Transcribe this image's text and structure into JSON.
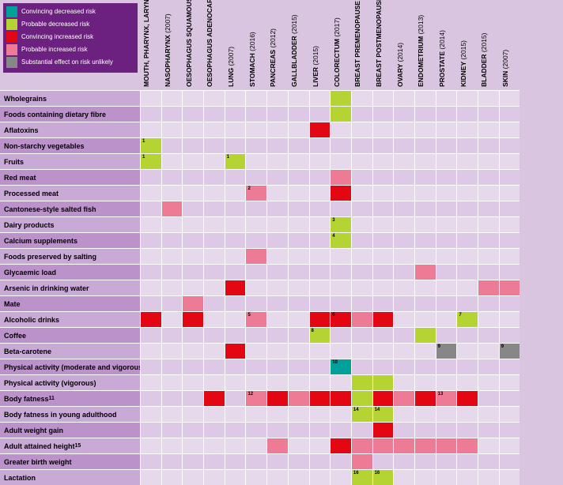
{
  "colors": {
    "background": "#d9c5e0",
    "row_alt_a": "#e7d9ec",
    "row_alt_b": "#ddc9e5",
    "rowlabel_alt_a": "#c9a9d5",
    "rowlabel_alt_b": "#bb93ca",
    "border": "#ffffff",
    "legend_bg": "#6c2080",
    "convincing_decreased": "#00a19a",
    "probable_decreased": "#b6d334",
    "convincing_increased": "#e30613",
    "probable_increased": "#ee7b95",
    "unlikely": "#878787"
  },
  "legend": [
    {
      "key": "convincing_decreased",
      "label": "Convincing decreased risk"
    },
    {
      "key": "probable_decreased",
      "label": "Probable decreased risk"
    },
    {
      "key": "convincing_increased",
      "label": "Convincing increased risk"
    },
    {
      "key": "probable_increased",
      "label": "Probable increased risk"
    },
    {
      "key": "unlikely",
      "label": "Substantial effect on risk unlikely"
    }
  ],
  "columns": [
    {
      "label": "MOUTH, PHARYNX, LARYNX",
      "year": "(2007)"
    },
    {
      "label": "NASOPHARYNX",
      "year": "(2007)"
    },
    {
      "label": "OESOPHAGUS SQUAMOUS CELL CARCINOMA",
      "year": "(2016)"
    },
    {
      "label": "OESOPHAGUS ADENOCARCINOMA",
      "year": "(2016)"
    },
    {
      "label": "LUNG",
      "year": "(2007)"
    },
    {
      "label": "STOMACH",
      "year": "(2016)"
    },
    {
      "label": "PANCREAS",
      "year": "(2012)"
    },
    {
      "label": "GALLBLADDER",
      "year": "(2015)"
    },
    {
      "label": "LIVER",
      "year": "(2015)"
    },
    {
      "label": "COLORECTUM",
      "year": "(2017)"
    },
    {
      "label": "BREAST PREMENOPAUSE",
      "year": "(2017)"
    },
    {
      "label": "BREAST POSTMENOPAUSE",
      "year": "(2017)"
    },
    {
      "label": "OVARY",
      "year": "(2014)"
    },
    {
      "label": "ENDOMETRIUM",
      "year": "(2013)"
    },
    {
      "label": "PROSTATE",
      "year": "(2014)"
    },
    {
      "label": "KIDNEY",
      "year": "(2015)"
    },
    {
      "label": "BLADDER",
      "year": "(2015)"
    },
    {
      "label": "SKIN",
      "year": "(2007)"
    }
  ],
  "rows": [
    {
      "label": "Wholegrains",
      "cells": {
        "9": {
          "c": "probable_decreased"
        }
      }
    },
    {
      "label": "Foods containing dietary fibre",
      "cells": {
        "9": {
          "c": "probable_decreased"
        }
      }
    },
    {
      "label": "Aflatoxins",
      "cells": {
        "8": {
          "c": "convincing_increased"
        }
      }
    },
    {
      "label": "Non-starchy vegetables",
      "cells": {
        "0": {
          "c": "probable_decreased",
          "sup": "1"
        }
      }
    },
    {
      "label": "Fruits",
      "cells": {
        "0": {
          "c": "probable_decreased",
          "sup": "1"
        },
        "4": {
          "c": "probable_decreased",
          "sup": "1"
        }
      }
    },
    {
      "label": "Red meat",
      "cells": {
        "9": {
          "c": "probable_increased"
        }
      }
    },
    {
      "label": "Processed meat",
      "cells": {
        "5": {
          "c": "probable_increased",
          "sup": "2"
        },
        "9": {
          "c": "convincing_increased"
        }
      }
    },
    {
      "label": "Cantonese-style salted fish",
      "cells": {
        "1": {
          "c": "probable_increased"
        }
      }
    },
    {
      "label": "Dairy products",
      "cells": {
        "9": {
          "c": "probable_decreased",
          "sup": "3"
        }
      }
    },
    {
      "label": "Calcium supplements",
      "cells": {
        "9": {
          "c": "probable_decreased",
          "sup": "4"
        }
      }
    },
    {
      "label": "Foods preserved by salting",
      "cells": {
        "5": {
          "c": "probable_increased"
        }
      }
    },
    {
      "label": "Glycaemic load",
      "cells": {
        "13": {
          "c": "probable_increased"
        }
      }
    },
    {
      "label": "Arsenic in drinking water",
      "cells": {
        "4": {
          "c": "convincing_increased"
        },
        "16": {
          "c": "probable_increased"
        },
        "17": {
          "c": "probable_increased"
        }
      }
    },
    {
      "label": "Mate",
      "cells": {
        "2": {
          "c": "probable_increased"
        }
      }
    },
    {
      "label": "Alcoholic drinks",
      "cells": {
        "0": {
          "c": "convincing_increased"
        },
        "2": {
          "c": "convincing_increased"
        },
        "5": {
          "c": "probable_increased",
          "sup": "5"
        },
        "8": {
          "c": "convincing_increased"
        },
        "9": {
          "c": "convincing_increased",
          "sup": "6"
        },
        "10": {
          "c": "probable_increased"
        },
        "11": {
          "c": "convincing_increased"
        },
        "15": {
          "c": "probable_decreased",
          "sup": "7"
        }
      }
    },
    {
      "label": "Coffee",
      "cells": {
        "8": {
          "c": "probable_decreased",
          "sup": "8"
        },
        "13": {
          "c": "probable_decreased"
        }
      }
    },
    {
      "label": "Beta-carotene",
      "cells": {
        "4": {
          "c": "convincing_increased"
        },
        "14": {
          "c": "unlikely",
          "sup": "9"
        },
        "17": {
          "c": "unlikely",
          "sup": "9"
        }
      }
    },
    {
      "label": "Physical activity (moderate and vigorous)",
      "cells": {
        "9": {
          "c": "convincing_decreased",
          "sup": "10"
        }
      }
    },
    {
      "label": "Physical activity (vigorous)",
      "cells": {
        "10": {
          "c": "probable_decreased"
        },
        "11": {
          "c": "probable_decreased"
        }
      }
    },
    {
      "label": "Body fatness",
      "sup": "11",
      "cells": {
        "3": {
          "c": "convincing_increased"
        },
        "5": {
          "c": "probable_increased",
          "sup": "12"
        },
        "6": {
          "c": "convincing_increased"
        },
        "7": {
          "c": "probable_increased"
        },
        "8": {
          "c": "convincing_increased"
        },
        "9": {
          "c": "convincing_increased"
        },
        "10": {
          "c": "probable_decreased"
        },
        "11": {
          "c": "convincing_increased"
        },
        "12": {
          "c": "probable_increased"
        },
        "13": {
          "c": "convincing_increased"
        },
        "14": {
          "c": "probable_increased",
          "sup": "13"
        },
        "15": {
          "c": "convincing_increased"
        }
      }
    },
    {
      "label": "Body fatness in young adulthood",
      "cells": {
        "10": {
          "c": "probable_decreased",
          "sup": "14"
        },
        "11": {
          "c": "probable_decreased",
          "sup": "14"
        }
      }
    },
    {
      "label": "Adult weight gain",
      "cells": {
        "11": {
          "c": "convincing_increased"
        }
      }
    },
    {
      "label": "Adult attained height",
      "sup": "15",
      "cells": {
        "6": {
          "c": "probable_increased"
        },
        "9": {
          "c": "convincing_increased"
        },
        "10": {
          "c": "probable_increased"
        },
        "11": {
          "c": "probable_increased"
        },
        "12": {
          "c": "probable_increased"
        },
        "13": {
          "c": "probable_increased"
        },
        "14": {
          "c": "probable_increased"
        },
        "15": {
          "c": "probable_increased"
        }
      }
    },
    {
      "label": "Greater birth weight",
      "cells": {
        "10": {
          "c": "probable_increased"
        }
      }
    },
    {
      "label": "Lactation",
      "cells": {
        "10": {
          "c": "probable_decreased",
          "sup": "16"
        },
        "11": {
          "c": "probable_decreased",
          "sup": "16"
        }
      }
    }
  ]
}
